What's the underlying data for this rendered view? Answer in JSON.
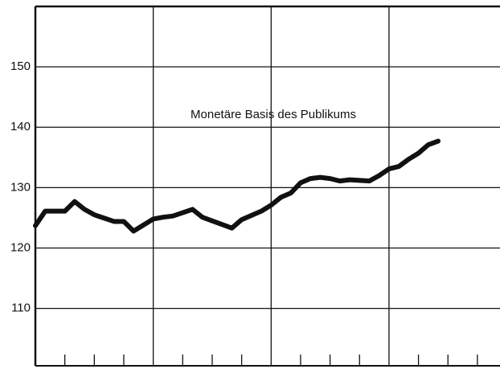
{
  "chart_data": {
    "type": "line",
    "annotation": "Monetäre Basis des Publikums",
    "x": [
      0,
      1,
      3,
      4,
      5,
      6,
      8,
      9,
      10,
      12,
      13,
      14,
      16,
      17,
      20,
      21,
      23,
      24,
      25,
      26,
      27,
      28,
      29,
      30,
      31,
      32,
      34,
      35,
      36,
      37,
      38,
      39,
      40,
      41
    ],
    "series": [
      {
        "color": "#111111",
        "values": [
          123.7,
          126.1,
          126.1,
          127.7,
          126.4,
          125.5,
          124.4,
          124.4,
          122.8,
          124.8,
          125.1,
          125.3,
          126.4,
          125.1,
          123.3,
          124.7,
          126.1,
          127.1,
          128.4,
          129.1,
          130.8,
          131.5,
          131.7,
          131.5,
          131.1,
          131.3,
          131.1,
          132.0,
          133.1,
          133.5,
          134.7,
          135.7,
          137.1,
          137.7
        ]
      }
    ],
    "xlim": [
      0,
      47.3
    ],
    "xticks": [
      12,
      24,
      36
    ],
    "minor_xticks": [
      3,
      6,
      9,
      15,
      18,
      21,
      27,
      30,
      33,
      39,
      42,
      45
    ],
    "ylim": [
      100.5,
      160
    ],
    "yticks": [
      110,
      120,
      130,
      140,
      150
    ],
    "grid": true
  }
}
